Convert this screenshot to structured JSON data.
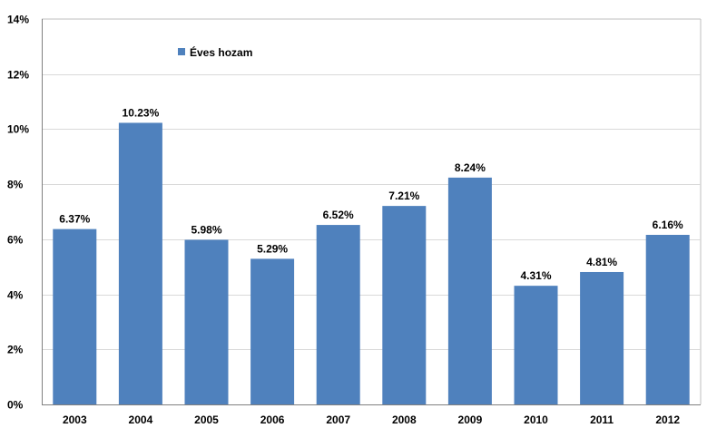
{
  "chart_data": {
    "type": "bar",
    "categories": [
      "2003",
      "2004",
      "2005",
      "2006",
      "2007",
      "2008",
      "2009",
      "2010",
      "2011",
      "2012"
    ],
    "series": [
      {
        "name": "Éves hozam",
        "values": [
          6.37,
          10.23,
          5.98,
          5.29,
          6.52,
          7.21,
          8.24,
          4.31,
          4.81,
          6.16
        ],
        "data_labels": [
          "6.37%",
          "10.23%",
          "5.98%",
          "5.29%",
          "6.52%",
          "7.21%",
          "8.24%",
          "4.31%",
          "4.81%",
          "6.16%"
        ],
        "color": "#4f81bd"
      }
    ],
    "ylim": [
      0,
      14
    ],
    "yticks": [
      0,
      2,
      4,
      6,
      8,
      10,
      12,
      14
    ],
    "ytick_labels": [
      "0%",
      "2%",
      "4%",
      "6%",
      "8%",
      "10%",
      "12%",
      "14%"
    ],
    "grid": true,
    "gridline_color": "#d9d9d9",
    "legend_position": "top-left",
    "title": "",
    "xlabel": "",
    "ylabel": ""
  }
}
